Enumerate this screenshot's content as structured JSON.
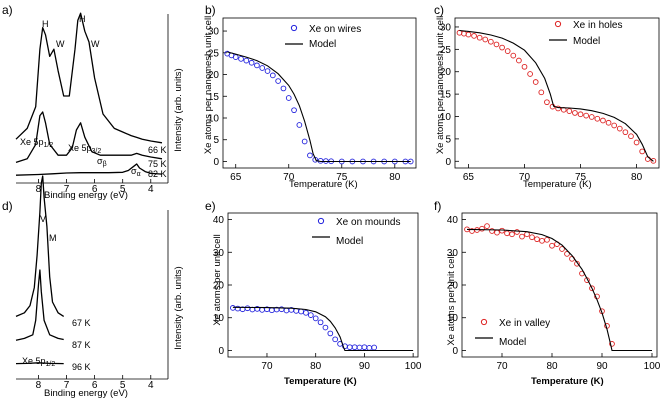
{
  "chart_data": [
    {
      "panel": "a)",
      "type": "line",
      "xlabel": "Binding energy (eV)",
      "ylabel": "Intensity (arb. units)",
      "xlim": [
        8.8,
        3.6
      ],
      "xticks": [
        8,
        7,
        6,
        5,
        4
      ],
      "x_reversed": true,
      "peak_labels": [
        "H",
        "W",
        "H",
        "W"
      ],
      "spectra": [
        {
          "name": "66 K",
          "x": [
            8.8,
            8.4,
            8.1,
            7.95,
            7.85,
            7.75,
            7.6,
            7.45,
            7.3,
            7.1,
            6.9,
            6.7,
            6.6,
            6.5,
            6.35,
            6.2,
            6.0,
            5.7,
            5.3,
            5.0,
            4.7,
            4.5,
            4.3,
            4.0,
            3.6
          ],
          "y": [
            3,
            6,
            12,
            28,
            34,
            32,
            26,
            28,
            22,
            15,
            15,
            28,
            36,
            38,
            33,
            30,
            20,
            10,
            6,
            5,
            4,
            3.5,
            3,
            2.5,
            2
          ]
        },
        {
          "name": "75 K",
          "x": [
            8.8,
            8.4,
            8.1,
            7.95,
            7.85,
            7.75,
            7.6,
            7.3,
            7.0,
            6.8,
            6.65,
            6.5,
            6.35,
            6.1,
            5.8,
            5.4,
            5.0,
            4.7,
            4.5,
            4.3,
            4.0,
            3.6
          ],
          "y": [
            1,
            2,
            6,
            14,
            15,
            12,
            6,
            3,
            3,
            5,
            10,
            12,
            8,
            4,
            3,
            3,
            3,
            3,
            3.5,
            3,
            2.5,
            2
          ]
        },
        {
          "name": "82 K",
          "x": [
            8.8,
            8.0,
            7.5,
            7.0,
            6.5,
            6.0,
            5.5,
            5.0,
            4.8,
            4.6,
            4.5,
            4.4,
            4.2,
            4.0,
            3.6
          ],
          "y": [
            0.5,
            0.7,
            0.9,
            1.1,
            1.2,
            1.2,
            1.2,
            1.3,
            1.8,
            3,
            3.6,
            2.5,
            1.5,
            1,
            0.8
          ]
        }
      ],
      "annotations": [
        "Xe 5p1/2",
        "Xe 5p3/2",
        "σβ",
        "σα"
      ]
    },
    {
      "panel": "b)",
      "type": "scatter",
      "xlabel": "Temperature (K)",
      "ylabel": "Xe atoms per nanomesh unit cell",
      "xlim": [
        63.8,
        82
      ],
      "ylim": [
        -1.5,
        33
      ],
      "xticks": [
        65,
        70,
        75,
        80
      ],
      "yticks": [
        0,
        5,
        10,
        15,
        20,
        25,
        30
      ],
      "legend_position": "top-center",
      "series": [
        {
          "name": "Xe on wires",
          "style": "markers",
          "color": "#2222dd",
          "x": [
            64.2,
            64.6,
            65,
            65.5,
            66,
            66.5,
            67,
            67.5,
            68,
            68.5,
            69,
            69.5,
            70,
            70.5,
            71,
            71.5,
            72,
            72.5,
            73,
            73.5,
            74,
            75,
            76,
            77,
            78,
            79,
            80,
            81,
            81.5
          ],
          "y": [
            24.8,
            24.4,
            24,
            23.6,
            23.2,
            22.7,
            22.1,
            21.5,
            20.8,
            19.8,
            18.5,
            16.8,
            14.6,
            11.8,
            8.4,
            4.6,
            1.4,
            0.4,
            0.15,
            0.1,
            0.05,
            0,
            0,
            0,
            0,
            0,
            0,
            0,
            0
          ]
        },
        {
          "name": "Model",
          "style": "line",
          "color": "#000000",
          "x": [
            64.2,
            65,
            66,
            67,
            68,
            69,
            70,
            70.5,
            71,
            71.5,
            72,
            72.3,
            72.6,
            73,
            75,
            80,
            81.5
          ],
          "y": [
            25.2,
            24.7,
            24,
            23.2,
            22,
            20.2,
            17.5,
            15.5,
            12.8,
            9.2,
            4.8,
            1.8,
            0.2,
            0,
            0,
            0,
            0
          ]
        }
      ]
    },
    {
      "panel": "c)",
      "type": "scatter",
      "xlabel": "Temperature (K)",
      "ylabel": "Xe atoms per nanomesh unit cell",
      "xlim": [
        63.8,
        82
      ],
      "ylim": [
        -1.5,
        32
      ],
      "xticks": [
        65,
        70,
        75,
        80
      ],
      "yticks": [
        0,
        5,
        10,
        15,
        20,
        25,
        30
      ],
      "legend_position": "top-right",
      "series": [
        {
          "name": "Xe in holes",
          "style": "markers",
          "color": "#dd2222",
          "x": [
            64.2,
            64.6,
            65,
            65.5,
            66,
            66.5,
            67,
            67.5,
            68,
            68.5,
            69,
            69.5,
            70,
            70.5,
            71,
            71.5,
            72,
            72.5,
            73,
            73.5,
            74,
            74.5,
            75,
            75.5,
            76,
            76.5,
            77,
            77.5,
            78,
            78.5,
            79,
            79.5,
            80,
            80.5,
            81,
            81.5
          ],
          "y": [
            28.7,
            28.5,
            28.3,
            28,
            27.6,
            27.2,
            26.7,
            26.1,
            25.4,
            24.6,
            23.6,
            22.5,
            21.1,
            19.5,
            17.7,
            15.4,
            13.2,
            12.2,
            11.8,
            11.5,
            11.2,
            10.8,
            10.5,
            10.2,
            9.9,
            9.5,
            9.1,
            8.6,
            8,
            7.3,
            6.5,
            5.6,
            4.2,
            2.2,
            0.5,
            0.1
          ]
        },
        {
          "name": "Model",
          "style": "line",
          "color": "#000000",
          "x": [
            64.2,
            65,
            66,
            67,
            68,
            69,
            70,
            71,
            71.8,
            72.3,
            72.6,
            73,
            74,
            75,
            76,
            77,
            78,
            79,
            80,
            80.5,
            81,
            81.5
          ],
          "y": [
            29.2,
            29,
            28.7,
            28.2,
            27.5,
            26.4,
            24.8,
            22,
            18.5,
            15,
            12.3,
            12,
            11.9,
            11.7,
            11.3,
            10.7,
            9.8,
            8.4,
            6,
            3.8,
            1,
            0
          ]
        }
      ]
    },
    {
      "panel": "d)",
      "type": "line",
      "xlabel": "Binding energy (eV)",
      "ylabel": "Intensity (arb. units)",
      "xlim": [
        8.8,
        3.6
      ],
      "xticks": [
        8,
        7,
        6,
        5,
        4
      ],
      "x_reversed": true,
      "peak_labels": [
        "V",
        "M"
      ],
      "spectra": [
        {
          "name": "67 K",
          "x": [
            8.8,
            8.5,
            8.3,
            8.15,
            8.05,
            7.95,
            7.9,
            7.85,
            7.8,
            7.7,
            7.6,
            7.5,
            7.3,
            7.1
          ],
          "y": [
            1,
            2,
            4,
            9,
            18,
            30,
            38,
            40,
            34,
            26,
            12,
            5,
            2,
            1
          ]
        },
        {
          "name": "87 K",
          "x": [
            8.8,
            8.5,
            8.2,
            8.1,
            8.0,
            7.95,
            7.9,
            7.8,
            7.6,
            7.3,
            7.1
          ],
          "y": [
            0.5,
            1,
            2,
            6,
            16,
            20,
            14,
            6,
            2,
            1,
            0.7
          ]
        },
        {
          "name": "96 K",
          "x": [
            8.8,
            8.4,
            8.0,
            7.6,
            7.1
          ],
          "y": [
            0.4,
            0.45,
            0.6,
            0.45,
            0.4
          ]
        }
      ],
      "annotations": [
        "Xe 5p1/2"
      ]
    },
    {
      "panel": "e)",
      "type": "scatter",
      "xlabel": "Temperature (K)",
      "ylabel": "Xe atoms per unit cell",
      "xlim": [
        62,
        101
      ],
      "ylim": [
        -2,
        42
      ],
      "xticks": [
        70,
        80,
        90,
        100
      ],
      "yticks": [
        0,
        10,
        20,
        30,
        40
      ],
      "legend_position": "top-right",
      "series": [
        {
          "name": "Xe on mounds",
          "style": "markers",
          "color": "#2222dd",
          "x": [
            63,
            64,
            65,
            66,
            67,
            68,
            69,
            70,
            71,
            72,
            73,
            74,
            75,
            76,
            77,
            78,
            79,
            80,
            81,
            82,
            83,
            84,
            85,
            86,
            87,
            88,
            89,
            90,
            91,
            92
          ],
          "y": [
            13,
            12.8,
            12.6,
            12.9,
            12.5,
            12.7,
            12.4,
            12.6,
            12.3,
            12.5,
            12.6,
            12.2,
            12.4,
            12.1,
            11.9,
            11.5,
            10.8,
            9.8,
            8.6,
            7,
            5.2,
            3.4,
            2,
            1.3,
            1,
            1,
            0.9,
            1,
            0.8,
            0.9
          ]
        },
        {
          "name": "Model",
          "style": "line",
          "color": "#000000",
          "x": [
            63,
            70,
            75,
            78,
            80,
            82,
            83,
            84,
            85,
            85.7,
            86,
            90,
            100
          ],
          "y": [
            13.2,
            13.1,
            12.9,
            12.5,
            11.8,
            10.3,
            8.9,
            6.9,
            4.1,
            1,
            0,
            0,
            0
          ]
        }
      ]
    },
    {
      "panel": "f)",
      "type": "scatter",
      "xlabel": "Temperature (K)",
      "ylabel": "Xe atoms per unit cell",
      "xlim": [
        62,
        101
      ],
      "ylim": [
        -2,
        42
      ],
      "xticks": [
        70,
        80,
        90,
        100
      ],
      "yticks": [
        0,
        10,
        20,
        30,
        40
      ],
      "legend_position": "bottom-left",
      "series": [
        {
          "name": "Xe in valley",
          "style": "markers",
          "color": "#dd2222",
          "x": [
            63,
            64,
            65,
            66,
            67,
            68,
            69,
            70,
            71,
            72,
            73,
            74,
            75,
            76,
            77,
            78,
            79,
            80,
            81,
            82,
            83,
            84,
            85,
            86,
            87,
            88,
            89,
            90,
            91,
            92
          ],
          "y": [
            37,
            36.5,
            36.8,
            37.2,
            38,
            36.5,
            36,
            36.6,
            35.8,
            35.5,
            36.2,
            34.8,
            35.5,
            34.6,
            34,
            33.5,
            33.8,
            32,
            32.5,
            31,
            29.5,
            28,
            26.5,
            23.5,
            21.5,
            19,
            16.5,
            12,
            7.5,
            2
          ]
        },
        {
          "name": "Model",
          "style": "line",
          "color": "#000000",
          "x": [
            63,
            70,
            75,
            78,
            80,
            82,
            84,
            86,
            87,
            88,
            89,
            90,
            91,
            91.7,
            92,
            93,
            100
          ],
          "y": [
            37,
            36.8,
            36.3,
            35.4,
            34.2,
            32.2,
            29,
            24.8,
            22,
            19,
            15.5,
            11.5,
            6.5,
            2,
            0,
            0,
            0
          ]
        }
      ]
    }
  ],
  "labels": {
    "a": {
      "panel": "a)",
      "ylabel": "Intensity (arb. units)",
      "xlabel": "Binding energy (eV)",
      "peaks": [
        "H",
        "W",
        "H",
        "W"
      ],
      "temps": [
        "66 K",
        "75 K",
        "82 K"
      ],
      "ann1": "Xe 5p",
      "ann1_sub": "1/2",
      "ann2": "Xe 5p",
      "ann2_sub": "3/2",
      "sigma_b": "σ",
      "sigma_b_sub": "β",
      "sigma_a": "σ",
      "sigma_a_sub": "α"
    },
    "b": {
      "panel": "b)",
      "ylabel": "Xe atoms per nanomesh unit cell",
      "xlabel": "Temperature (K)",
      "legend_data": "Xe on wires",
      "legend_model": "Model"
    },
    "c": {
      "panel": "c)",
      "ylabel": "Xe atoms per nanomesh unit cell",
      "xlabel": "Temperature (K)",
      "legend_data": "Xe in holes",
      "legend_model": "Model"
    },
    "d": {
      "panel": "d)",
      "ylabel": "Intensity (arb. units)",
      "xlabel": "Binding energy (eV)",
      "peaks": [
        "V",
        "M"
      ],
      "temps": [
        "67 K",
        "87 K",
        "96 K"
      ],
      "ann1": "Xe 5p",
      "ann1_sub": "1/2"
    },
    "e": {
      "panel": "e)",
      "ylabel": "Xe atoms per unit cell",
      "xlabel": "Temperature (K)",
      "legend_data": "Xe on mounds",
      "legend_model": "Model"
    },
    "f": {
      "panel": "f)",
      "ylabel": "Xe atoms per unit cell",
      "xlabel": "Temperature (K)",
      "legend_data": "Xe in valley",
      "legend_model": "Model"
    }
  }
}
